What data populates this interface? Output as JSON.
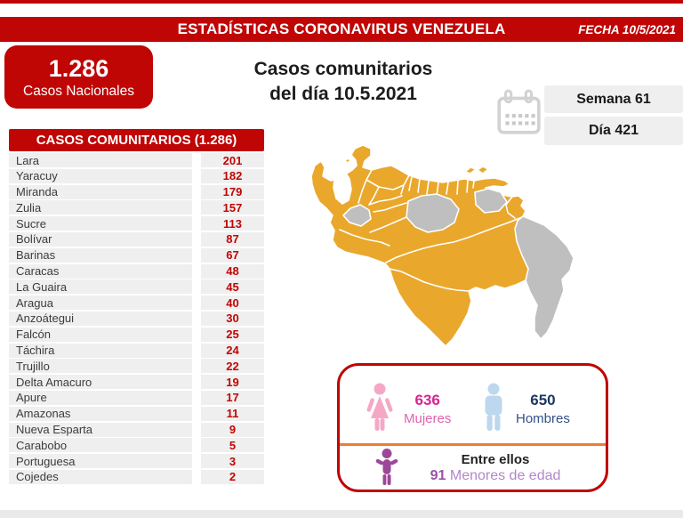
{
  "header": {
    "title": "ESTADÍSTICAS CORONAVIRUS VENEZUELA",
    "date": "FECHA 10/5/2021"
  },
  "national_box": {
    "value": "1.286",
    "label": "Casos Nacionales"
  },
  "main_title": {
    "line1": "Casos comunitarios",
    "line2": "del día 10.5.2021"
  },
  "period": {
    "week": "Semana 61",
    "day": "Día 421"
  },
  "community_table": {
    "header": "CASOS COMUNITARIOS (1.286)",
    "rows": [
      {
        "state": "Lara",
        "value": "201"
      },
      {
        "state": "Yaracuy",
        "value": "182"
      },
      {
        "state": "Miranda",
        "value": "179"
      },
      {
        "state": "Zulia",
        "value": "157"
      },
      {
        "state": "Sucre",
        "value": "113"
      },
      {
        "state": "Bolívar",
        "value": "87"
      },
      {
        "state": "Barinas",
        "value": "67"
      },
      {
        "state": "Caracas",
        "value": "48"
      },
      {
        "state": "La Guaira",
        "value": "45"
      },
      {
        "state": "Aragua",
        "value": "40"
      },
      {
        "state": "Anzoátegui",
        "value": "30"
      },
      {
        "state": "Falcón",
        "value": "25"
      },
      {
        "state": "Táchira",
        "value": "24"
      },
      {
        "state": "Trujillo",
        "value": "22"
      },
      {
        "state": "Delta Amacuro",
        "value": "19"
      },
      {
        "state": "Apure",
        "value": "17"
      },
      {
        "state": "Amazonas",
        "value": "11"
      },
      {
        "state": "Nueva Esparta",
        "value": "9"
      },
      {
        "state": "Carabobo",
        "value": "5"
      },
      {
        "state": "Portuguesa",
        "value": "3"
      },
      {
        "state": "Cojedes",
        "value": "2"
      }
    ]
  },
  "demographics": {
    "women": {
      "value": "636",
      "label": "Mujeres"
    },
    "men": {
      "value": "650",
      "label": "Hombres"
    },
    "minors": {
      "intro": "Entre ellos",
      "value": "91",
      "label": "Menores de edad"
    }
  },
  "colors": {
    "brand_red": "#C00505",
    "map_yellow": "#E9A72C",
    "map_gray": "#BFBFBF",
    "row_gray": "#EFEFEF",
    "women_pink": "#D6258E",
    "men_navy": "#1F3864",
    "minors_purple": "#9B51A8",
    "divider_orange": "#ED7D31"
  },
  "icons": {
    "calendar": "calendar-icon",
    "woman": "woman-icon",
    "man": "man-icon",
    "child": "child-icon"
  }
}
